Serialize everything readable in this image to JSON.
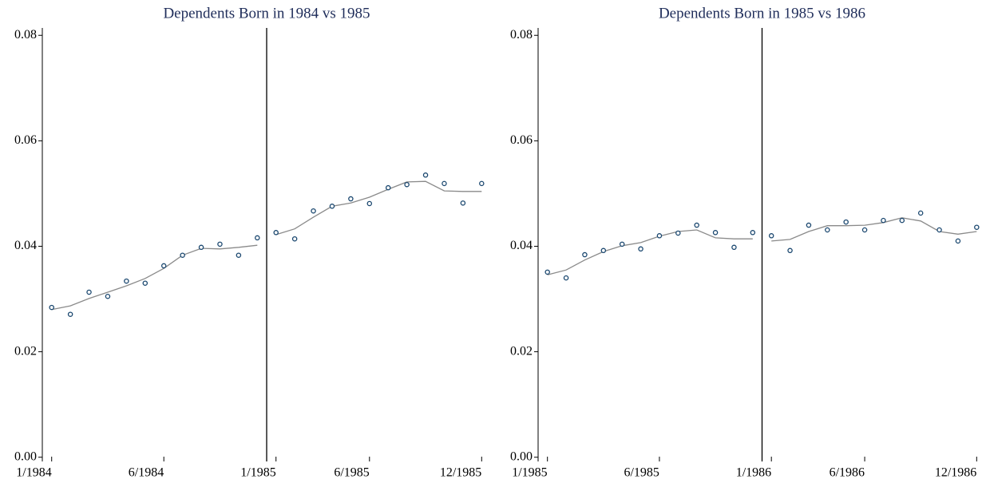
{
  "chart_data": [
    {
      "type": "scatter",
      "title": "Dependents Born in 1984 vs 1985",
      "x": [
        0,
        1,
        2,
        3,
        4,
        5,
        6,
        7,
        8,
        9,
        10,
        11,
        12,
        13,
        14,
        15,
        16,
        17,
        18,
        19,
        20,
        21,
        22,
        23
      ],
      "points": {
        "color": "#1a476f",
        "values": [
          0.0284,
          0.0271,
          0.0313,
          0.0305,
          0.0334,
          0.033,
          0.0363,
          0.0383,
          0.0398,
          0.0404,
          0.0383,
          0.0416,
          0.0426,
          0.0414,
          0.0467,
          0.0476,
          0.049,
          0.0481,
          0.0511,
          0.0517,
          0.0535,
          0.0519,
          0.0482,
          0.0519
        ]
      },
      "fits": [
        {
          "color": "#8a8a8a",
          "x": [
            0,
            1,
            2,
            3,
            4,
            5,
            6,
            7,
            8,
            9,
            10,
            11
          ],
          "values": [
            0.028,
            0.0287,
            0.0301,
            0.0313,
            0.0325,
            0.0339,
            0.0358,
            0.0383,
            0.0396,
            0.0395,
            0.0398,
            0.0402
          ]
        },
        {
          "color": "#8a8a8a",
          "x": [
            12,
            13,
            14,
            15,
            16,
            17,
            18,
            19,
            20,
            21,
            22,
            23
          ],
          "values": [
            0.0422,
            0.0433,
            0.0455,
            0.0476,
            0.0482,
            0.0493,
            0.0508,
            0.0522,
            0.0523,
            0.0505,
            0.0504,
            0.0504
          ]
        }
      ],
      "cutoff": 11.5,
      "xlim": [
        -0.5,
        23.5
      ],
      "xticks": [
        {
          "value": 0,
          "label": "1/1984"
        },
        {
          "value": 6,
          "label": "6/1984"
        },
        {
          "value": 12,
          "label": "1/1985"
        },
        {
          "value": 17,
          "label": "6/1985"
        },
        {
          "value": 23,
          "label": "12/1985"
        }
      ],
      "ylim": [
        -0.0008,
        0.0814
      ],
      "yticks": [
        {
          "value": 0,
          "label": "0.00"
        },
        0.02,
        0.04,
        0.06,
        0.08
      ]
    },
    {
      "type": "scatter",
      "title": "Dependents Born in 1985 vs 1986",
      "x": [
        0,
        1,
        2,
        3,
        4,
        5,
        6,
        7,
        8,
        9,
        10,
        11,
        12,
        13,
        14,
        15,
        16,
        17,
        18,
        19,
        20,
        21,
        22,
        23
      ],
      "points": {
        "color": "#1a476f",
        "values": [
          0.0351,
          0.034,
          0.0384,
          0.0392,
          0.0404,
          0.0395,
          0.042,
          0.0425,
          0.044,
          0.0426,
          0.0398,
          0.0426,
          0.042,
          0.0392,
          0.044,
          0.0431,
          0.0446,
          0.0431,
          0.0449,
          0.0449,
          0.0463,
          0.0431,
          0.041,
          0.0436
        ]
      },
      "fits": [
        {
          "color": "#8a8a8a",
          "x": [
            0,
            1,
            2,
            3,
            4,
            5,
            6,
            7,
            8,
            9,
            10,
            11
          ],
          "values": [
            0.0346,
            0.0355,
            0.0374,
            0.039,
            0.0401,
            0.0407,
            0.0419,
            0.0428,
            0.0431,
            0.0416,
            0.0414,
            0.0414
          ]
        },
        {
          "color": "#8a8a8a",
          "x": [
            12,
            13,
            14,
            15,
            16,
            17,
            18,
            19,
            20,
            21,
            22,
            23
          ],
          "values": [
            0.041,
            0.0413,
            0.0428,
            0.0439,
            0.0439,
            0.044,
            0.0445,
            0.0454,
            0.0448,
            0.0428,
            0.0423,
            0.0428
          ]
        }
      ],
      "cutoff": 11.5,
      "xlim": [
        -0.5,
        23.5
      ],
      "xticks": [
        {
          "value": 0,
          "label": "1/1985"
        },
        {
          "value": 6,
          "label": "6/1985"
        },
        {
          "value": 12,
          "label": "1/1986"
        },
        {
          "value": 17,
          "label": "6/1986"
        },
        {
          "value": 23,
          "label": "12/1986"
        }
      ],
      "ylim": [
        -0.0008,
        0.0814
      ],
      "yticks": [
        {
          "value": 0,
          "label": "0.00"
        },
        0.02,
        0.04,
        0.06,
        0.08
      ]
    }
  ]
}
